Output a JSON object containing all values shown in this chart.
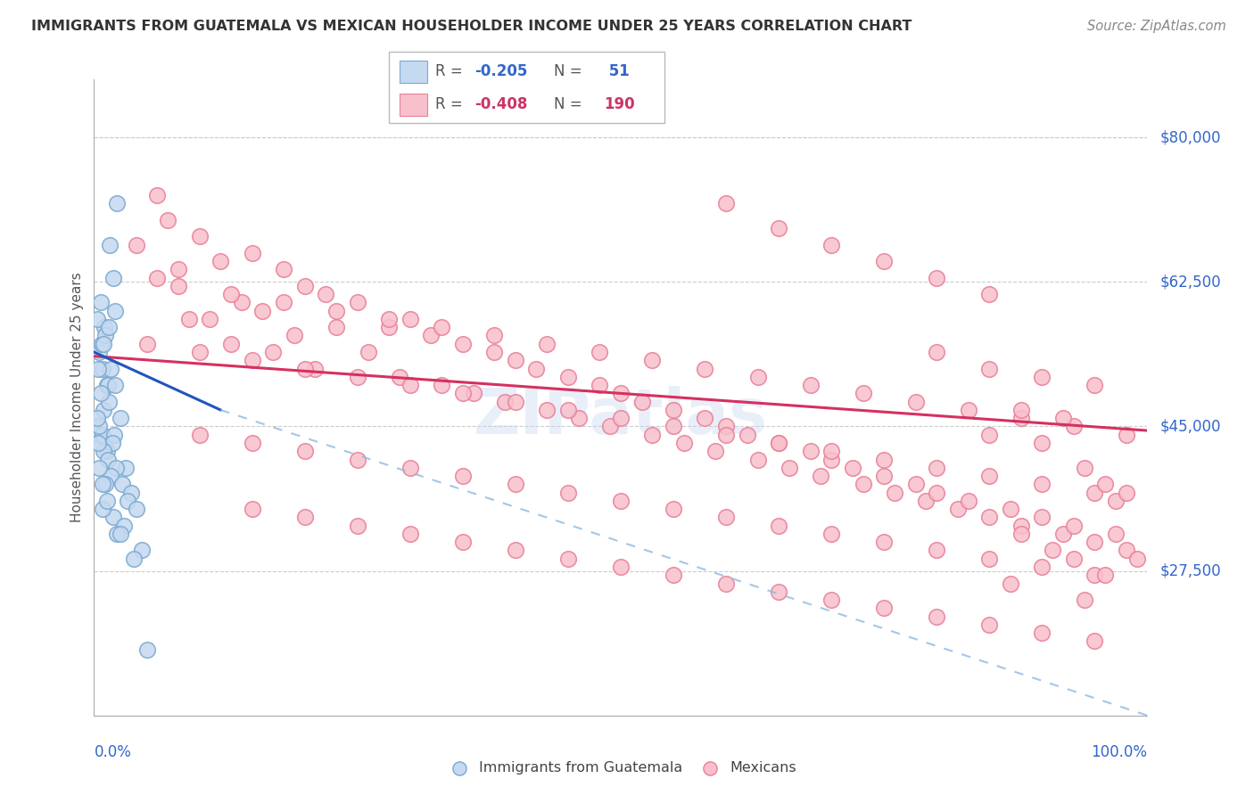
{
  "title": "IMMIGRANTS FROM GUATEMALA VS MEXICAN HOUSEHOLDER INCOME UNDER 25 YEARS CORRELATION CHART",
  "source": "Source: ZipAtlas.com",
  "ylabel": "Householder Income Under 25 years",
  "ytick_labels": [
    "$80,000",
    "$62,500",
    "$45,000",
    "$27,500"
  ],
  "ytick_values": [
    80000,
    62500,
    45000,
    27500
  ],
  "ylim": [
    10000,
    87000
  ],
  "xlim": [
    0.0,
    1.0
  ],
  "guatemala_r": "-0.205",
  "guatemala_n": "51",
  "mexico_r": "-0.408",
  "mexico_n": "190",
  "watermark": "ZIPatlas",
  "guatemala_fill": "#c5d9f0",
  "guatemala_edge": "#7aaad0",
  "mexico_fill": "#f8c0cc",
  "mexico_edge": "#e88098",
  "guatemala_line_color": "#2255bb",
  "mexico_line_color": "#d63060",
  "dashed_color": "#90b8e0",
  "guatemala_points": [
    [
      0.005,
      54000
    ],
    [
      0.008,
      52000
    ],
    [
      0.012,
      50000
    ],
    [
      0.006,
      60000
    ],
    [
      0.01,
      57000
    ],
    [
      0.018,
      63000
    ],
    [
      0.022,
      72000
    ],
    [
      0.015,
      67000
    ],
    [
      0.009,
      47000
    ],
    [
      0.004,
      44000
    ],
    [
      0.013,
      50000
    ],
    [
      0.016,
      52000
    ],
    [
      0.007,
      55000
    ],
    [
      0.003,
      58000
    ],
    [
      0.011,
      56000
    ],
    [
      0.02,
      50000
    ],
    [
      0.014,
      48000
    ],
    [
      0.008,
      44000
    ],
    [
      0.005,
      45000
    ],
    [
      0.012,
      42000
    ],
    [
      0.025,
      46000
    ],
    [
      0.019,
      44000
    ],
    [
      0.017,
      43000
    ],
    [
      0.009,
      42000
    ],
    [
      0.004,
      43000
    ],
    [
      0.03,
      40000
    ],
    [
      0.013,
      41000
    ],
    [
      0.021,
      40000
    ],
    [
      0.016,
      39000
    ],
    [
      0.027,
      38000
    ],
    [
      0.035,
      37000
    ],
    [
      0.032,
      36000
    ],
    [
      0.011,
      38000
    ],
    [
      0.04,
      35000
    ],
    [
      0.018,
      34000
    ],
    [
      0.028,
      33000
    ],
    [
      0.008,
      35000
    ],
    [
      0.022,
      32000
    ],
    [
      0.045,
      30000
    ],
    [
      0.038,
      29000
    ],
    [
      0.003,
      46000
    ],
    [
      0.006,
      49000
    ],
    [
      0.004,
      52000
    ],
    [
      0.009,
      55000
    ],
    [
      0.014,
      57000
    ],
    [
      0.02,
      59000
    ],
    [
      0.005,
      40000
    ],
    [
      0.008,
      38000
    ],
    [
      0.012,
      36000
    ],
    [
      0.025,
      32000
    ],
    [
      0.05,
      18000
    ]
  ],
  "mexico_points": [
    [
      0.04,
      67000
    ],
    [
      0.07,
      70000
    ],
    [
      0.1,
      68000
    ],
    [
      0.12,
      65000
    ],
    [
      0.08,
      64000
    ],
    [
      0.15,
      66000
    ],
    [
      0.18,
      64000
    ],
    [
      0.06,
      63000
    ],
    [
      0.2,
      62000
    ],
    [
      0.14,
      60000
    ],
    [
      0.22,
      61000
    ],
    [
      0.16,
      59000
    ],
    [
      0.09,
      58000
    ],
    [
      0.25,
      60000
    ],
    [
      0.11,
      58000
    ],
    [
      0.28,
      57000
    ],
    [
      0.19,
      56000
    ],
    [
      0.13,
      55000
    ],
    [
      0.3,
      58000
    ],
    [
      0.23,
      57000
    ],
    [
      0.32,
      56000
    ],
    [
      0.17,
      54000
    ],
    [
      0.35,
      55000
    ],
    [
      0.26,
      54000
    ],
    [
      0.38,
      54000
    ],
    [
      0.21,
      52000
    ],
    [
      0.4,
      53000
    ],
    [
      0.29,
      51000
    ],
    [
      0.42,
      52000
    ],
    [
      0.33,
      50000
    ],
    [
      0.45,
      51000
    ],
    [
      0.36,
      49000
    ],
    [
      0.48,
      50000
    ],
    [
      0.39,
      48000
    ],
    [
      0.5,
      49000
    ],
    [
      0.43,
      47000
    ],
    [
      0.52,
      48000
    ],
    [
      0.46,
      46000
    ],
    [
      0.55,
      47000
    ],
    [
      0.49,
      45000
    ],
    [
      0.58,
      46000
    ],
    [
      0.53,
      44000
    ],
    [
      0.6,
      45000
    ],
    [
      0.56,
      43000
    ],
    [
      0.62,
      44000
    ],
    [
      0.59,
      42000
    ],
    [
      0.65,
      43000
    ],
    [
      0.63,
      41000
    ],
    [
      0.68,
      42000
    ],
    [
      0.66,
      40000
    ],
    [
      0.7,
      41000
    ],
    [
      0.69,
      39000
    ],
    [
      0.72,
      40000
    ],
    [
      0.73,
      38000
    ],
    [
      0.75,
      39000
    ],
    [
      0.76,
      37000
    ],
    [
      0.78,
      38000
    ],
    [
      0.79,
      36000
    ],
    [
      0.8,
      37000
    ],
    [
      0.82,
      35000
    ],
    [
      0.83,
      36000
    ],
    [
      0.85,
      34000
    ],
    [
      0.87,
      35000
    ],
    [
      0.88,
      33000
    ],
    [
      0.9,
      34000
    ],
    [
      0.92,
      32000
    ],
    [
      0.93,
      33000
    ],
    [
      0.95,
      31000
    ],
    [
      0.97,
      32000
    ],
    [
      0.98,
      30000
    ],
    [
      0.99,
      29000
    ],
    [
      0.05,
      55000
    ],
    [
      0.1,
      54000
    ],
    [
      0.15,
      53000
    ],
    [
      0.2,
      52000
    ],
    [
      0.25,
      51000
    ],
    [
      0.3,
      50000
    ],
    [
      0.35,
      49000
    ],
    [
      0.4,
      48000
    ],
    [
      0.45,
      47000
    ],
    [
      0.5,
      46000
    ],
    [
      0.55,
      45000
    ],
    [
      0.6,
      44000
    ],
    [
      0.65,
      43000
    ],
    [
      0.7,
      42000
    ],
    [
      0.75,
      41000
    ],
    [
      0.8,
      40000
    ],
    [
      0.85,
      39000
    ],
    [
      0.9,
      38000
    ],
    [
      0.95,
      37000
    ],
    [
      0.06,
      73000
    ],
    [
      0.6,
      72000
    ],
    [
      0.65,
      69000
    ],
    [
      0.7,
      67000
    ],
    [
      0.75,
      65000
    ],
    [
      0.8,
      63000
    ],
    [
      0.85,
      61000
    ],
    [
      0.08,
      62000
    ],
    [
      0.13,
      61000
    ],
    [
      0.18,
      60000
    ],
    [
      0.23,
      59000
    ],
    [
      0.28,
      58000
    ],
    [
      0.33,
      57000
    ],
    [
      0.38,
      56000
    ],
    [
      0.43,
      55000
    ],
    [
      0.48,
      54000
    ],
    [
      0.53,
      53000
    ],
    [
      0.58,
      52000
    ],
    [
      0.63,
      51000
    ],
    [
      0.68,
      50000
    ],
    [
      0.73,
      49000
    ],
    [
      0.78,
      48000
    ],
    [
      0.83,
      47000
    ],
    [
      0.88,
      46000
    ],
    [
      0.93,
      45000
    ],
    [
      0.98,
      44000
    ],
    [
      0.1,
      44000
    ],
    [
      0.15,
      43000
    ],
    [
      0.2,
      42000
    ],
    [
      0.25,
      41000
    ],
    [
      0.3,
      40000
    ],
    [
      0.35,
      39000
    ],
    [
      0.4,
      38000
    ],
    [
      0.45,
      37000
    ],
    [
      0.5,
      36000
    ],
    [
      0.55,
      35000
    ],
    [
      0.6,
      34000
    ],
    [
      0.65,
      33000
    ],
    [
      0.7,
      32000
    ],
    [
      0.75,
      31000
    ],
    [
      0.8,
      30000
    ],
    [
      0.85,
      29000
    ],
    [
      0.9,
      28000
    ],
    [
      0.95,
      27000
    ],
    [
      0.15,
      35000
    ],
    [
      0.2,
      34000
    ],
    [
      0.25,
      33000
    ],
    [
      0.3,
      32000
    ],
    [
      0.35,
      31000
    ],
    [
      0.4,
      30000
    ],
    [
      0.45,
      29000
    ],
    [
      0.5,
      28000
    ],
    [
      0.55,
      27000
    ],
    [
      0.6,
      26000
    ],
    [
      0.65,
      25000
    ],
    [
      0.7,
      24000
    ],
    [
      0.75,
      23000
    ],
    [
      0.8,
      22000
    ],
    [
      0.85,
      21000
    ],
    [
      0.9,
      20000
    ],
    [
      0.95,
      19000
    ],
    [
      0.8,
      54000
    ],
    [
      0.85,
      52000
    ],
    [
      0.9,
      51000
    ],
    [
      0.95,
      50000
    ],
    [
      0.85,
      44000
    ],
    [
      0.9,
      43000
    ],
    [
      0.88,
      47000
    ],
    [
      0.92,
      46000
    ],
    [
      0.94,
      40000
    ],
    [
      0.96,
      38000
    ],
    [
      0.97,
      36000
    ],
    [
      0.98,
      37000
    ],
    [
      0.93,
      29000
    ],
    [
      0.96,
      27000
    ],
    [
      0.94,
      24000
    ],
    [
      0.87,
      26000
    ],
    [
      0.88,
      32000
    ],
    [
      0.91,
      30000
    ]
  ],
  "guat_line_x0": 0.0,
  "guat_line_y0": 54000,
  "guat_line_x1": 0.12,
  "guat_line_y1": 47000,
  "guat_line_x2": 1.0,
  "guat_line_y2": 10000,
  "mex_line_x0": 0.0,
  "mex_line_y0": 53500,
  "mex_line_x1": 1.0,
  "mex_line_y1": 44500
}
